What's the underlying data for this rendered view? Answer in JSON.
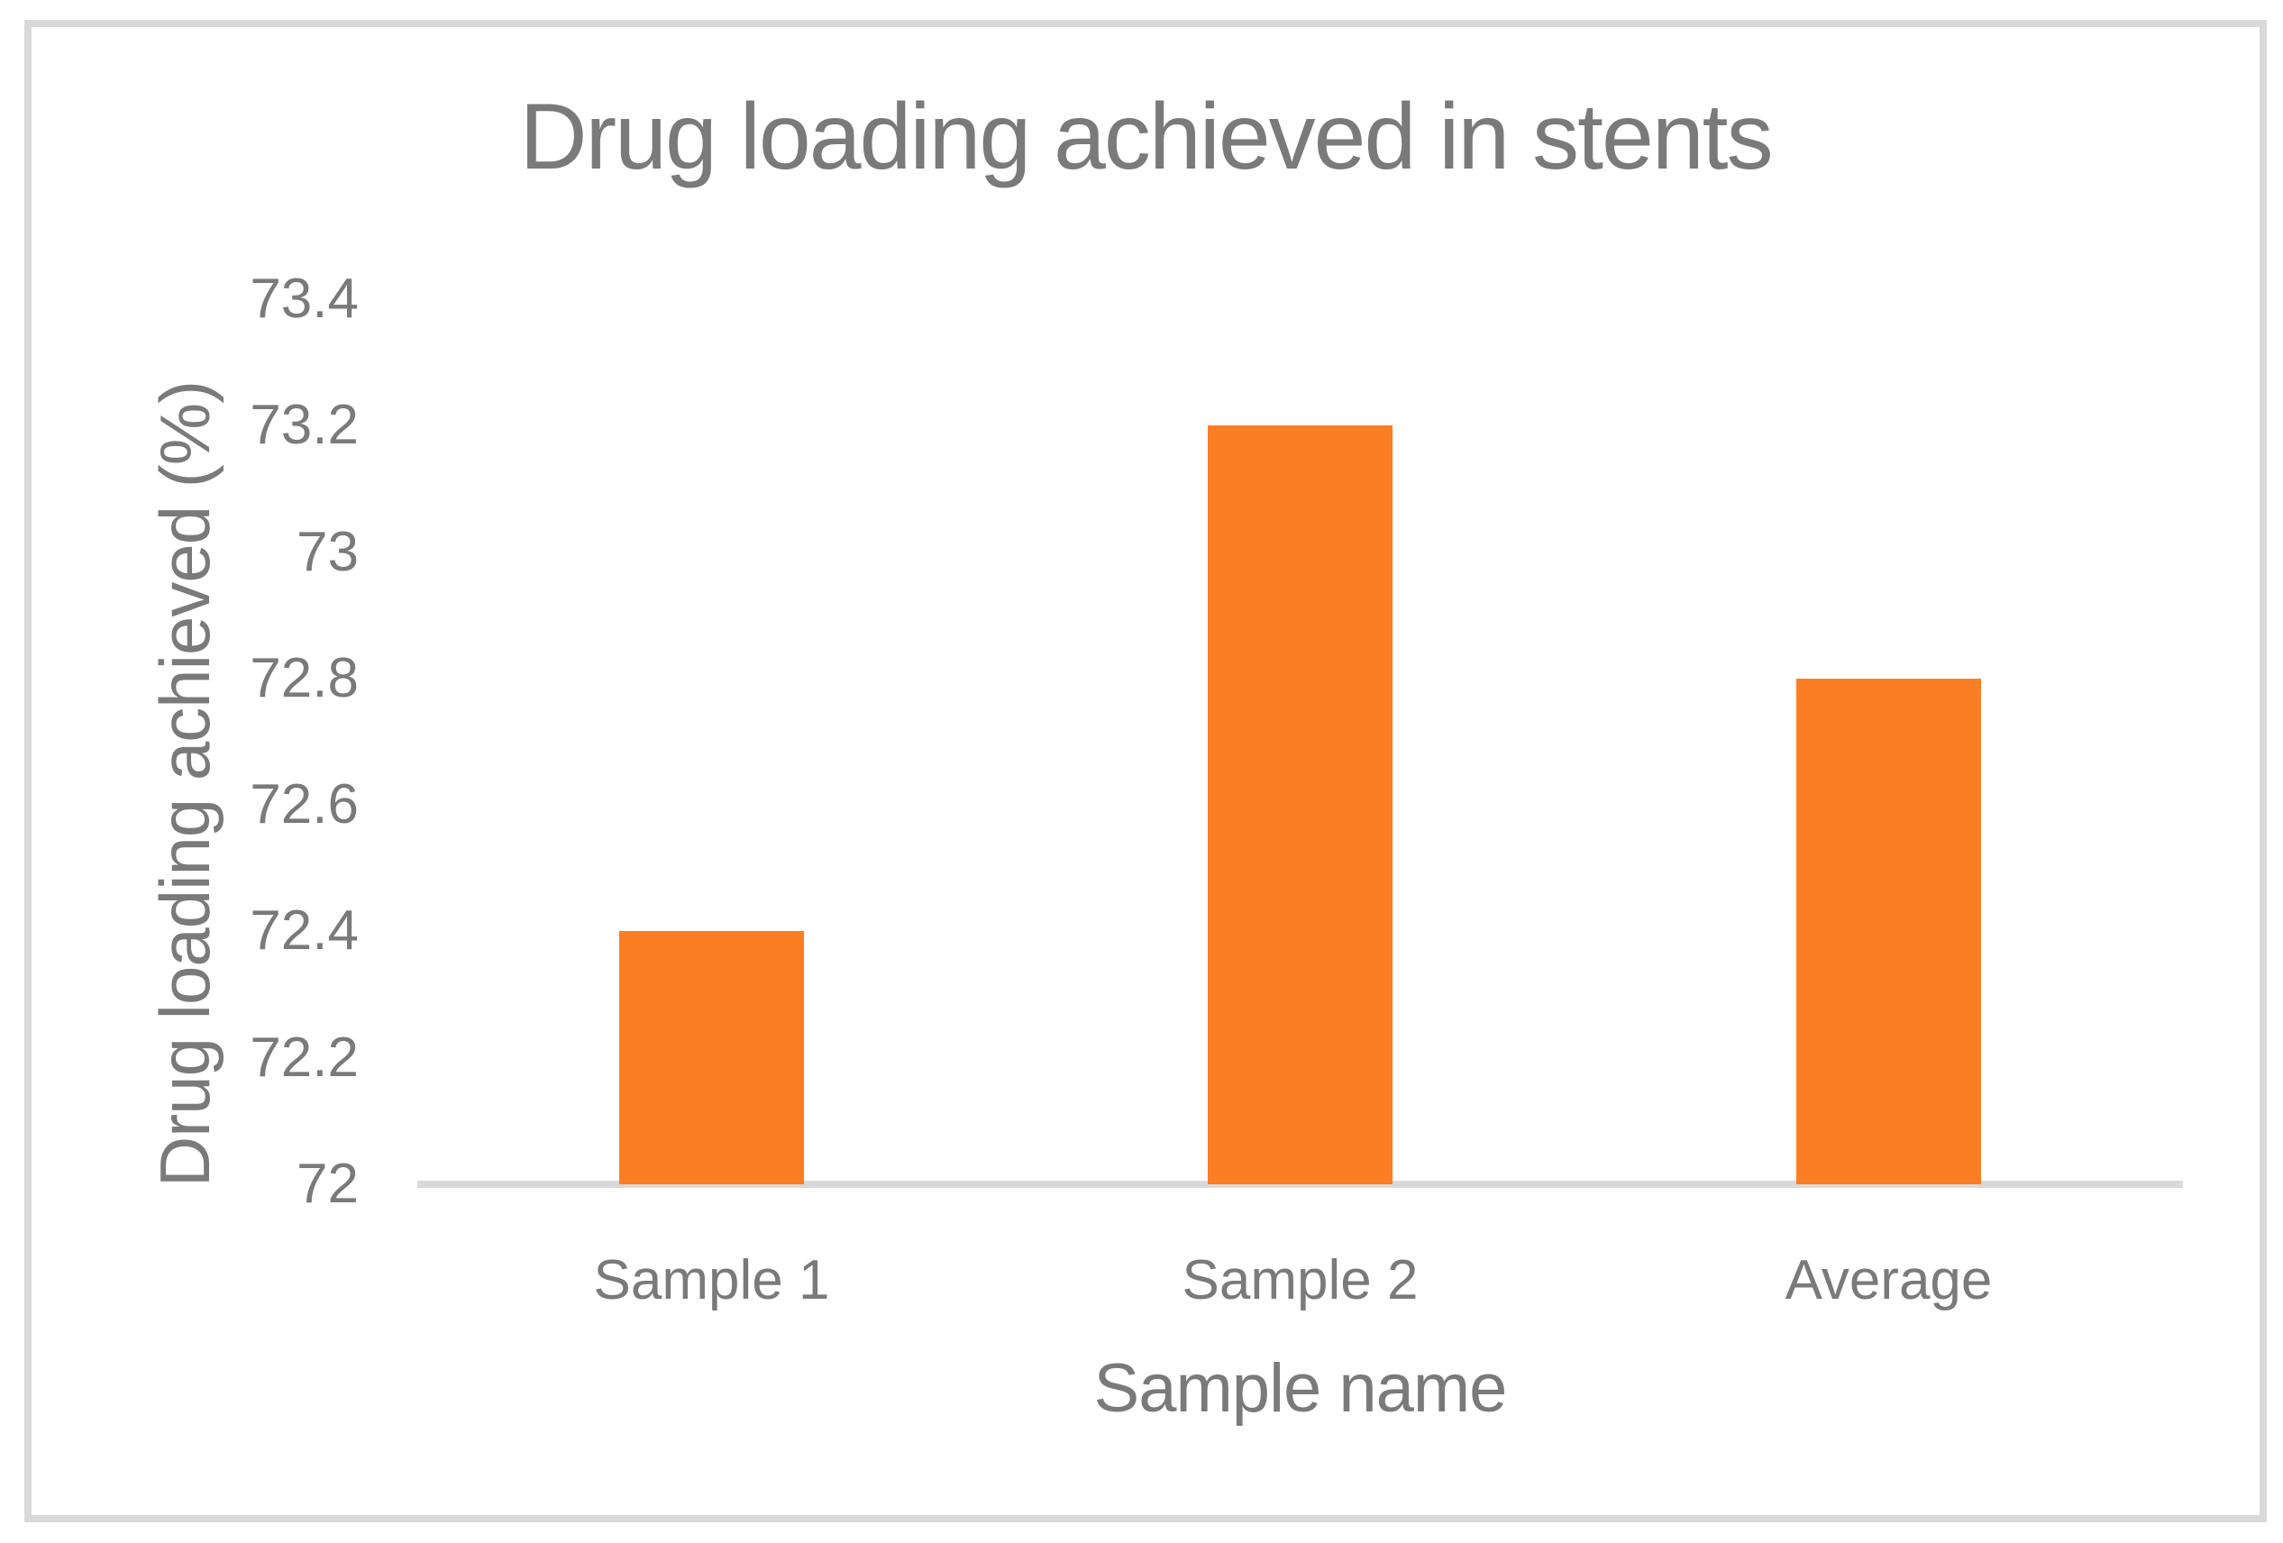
{
  "chart_data": {
    "type": "bar",
    "title": "Drug loading achieved in stents",
    "xlabel": "Sample name",
    "ylabel": "Drug loading achieved (%)",
    "categories": [
      "Sample 1",
      "Sample 2",
      "Average"
    ],
    "values": [
      72.4,
      73.2,
      72.8
    ],
    "ylim": [
      72,
      73.4
    ],
    "ytick_step": 0.2,
    "ytick_labels": [
      "72",
      "72.2",
      "72.4",
      "72.6",
      "72.8",
      "73",
      "73.2",
      "73.4"
    ],
    "grid": false,
    "legend": "none",
    "colors": {
      "bar": "#FB7D24",
      "text": "#7A7A7A",
      "axis_line": "#D9D9D9",
      "frame_border": "#D9D9D9",
      "background": "#FFFFFF"
    }
  }
}
